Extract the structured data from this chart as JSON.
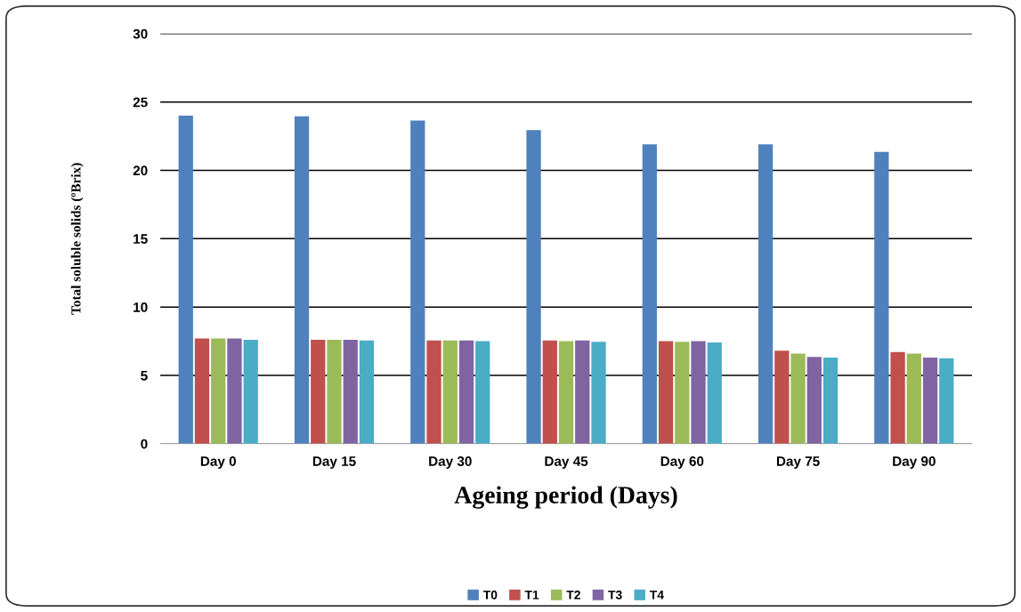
{
  "chart_data": {
    "type": "bar",
    "xlabel": "Ageing period (Days)",
    "ylabel": "Total soluble solids (ºBrix)",
    "categories": [
      "Day 0",
      "Day 15",
      "Day 30",
      "Day 45",
      "Day 60",
      "Day 75",
      "Day 90"
    ],
    "series": [
      {
        "name": "T0",
        "color": "#4f81bd",
        "values": [
          24.0,
          23.95,
          23.65,
          22.95,
          21.9,
          21.9,
          21.35
        ]
      },
      {
        "name": "T1",
        "color": "#c0504d",
        "values": [
          7.7,
          7.6,
          7.55,
          7.55,
          7.5,
          6.8,
          6.7
        ]
      },
      {
        "name": "T2",
        "color": "#9bbb59",
        "values": [
          7.7,
          7.6,
          7.55,
          7.5,
          7.45,
          6.6,
          6.6
        ]
      },
      {
        "name": "T3",
        "color": "#8064a2",
        "values": [
          7.7,
          7.6,
          7.55,
          7.55,
          7.5,
          6.35,
          6.3
        ]
      },
      {
        "name": "T4",
        "color": "#4bacc6",
        "values": [
          7.6,
          7.55,
          7.5,
          7.45,
          7.4,
          6.3,
          6.25
        ]
      }
    ],
    "ylim": [
      0,
      30
    ],
    "yticks": [
      0,
      5,
      10,
      15,
      20,
      25,
      30
    ],
    "grid": "y",
    "legend": "bottom"
  }
}
